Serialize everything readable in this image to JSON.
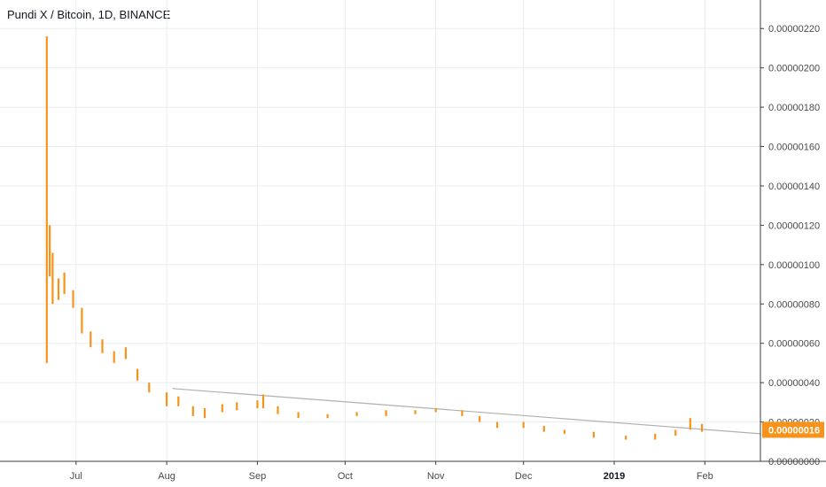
{
  "header": {
    "title": "Pundi X / Bitcoin, 1D, BINANCE"
  },
  "colors": {
    "candle": "#f7931a",
    "grid": "#e8edf2",
    "trendline": "#b0b0b0",
    "axis": "#3c3c3c",
    "price_tag": "#f7931a"
  },
  "current_price_label": "0.00000016",
  "chart_data": {
    "type": "bar",
    "title": "Pundi X / Bitcoin, 1D, BINANCE",
    "x_range": [
      "2018-06-05",
      "2019-02-20"
    ],
    "ylim": [
      0,
      2.3e-06
    ],
    "y_ticks": [
      {
        "value": 2.2e-06,
        "label": "0.00000220"
      },
      {
        "value": 2e-06,
        "label": "0.00000200"
      },
      {
        "value": 1.8e-06,
        "label": "0.00000180"
      },
      {
        "value": 1.6e-06,
        "label": "0.00000160"
      },
      {
        "value": 1.4e-06,
        "label": "0.00000140"
      },
      {
        "value": 1.2e-06,
        "label": "0.00000120"
      },
      {
        "value": 1e-06,
        "label": "0.00000100"
      },
      {
        "value": 8e-07,
        "label": "0.00000080"
      },
      {
        "value": 6e-07,
        "label": "0.00000060"
      },
      {
        "value": 4e-07,
        "label": "0.00000040"
      },
      {
        "value": 2e-07,
        "label": "0.00000020"
      },
      {
        "value": 0.0,
        "label": "0.00000000"
      }
    ],
    "x_ticks": [
      {
        "date": "2018-07-01",
        "label": "Jul",
        "bold": false
      },
      {
        "date": "2018-08-01",
        "label": "Aug",
        "bold": false
      },
      {
        "date": "2018-09-01",
        "label": "Sep",
        "bold": false
      },
      {
        "date": "2018-10-01",
        "label": "Oct",
        "bold": false
      },
      {
        "date": "2018-11-01",
        "label": "Nov",
        "bold": false
      },
      {
        "date": "2018-12-01",
        "label": "Dec",
        "bold": false
      },
      {
        "date": "2019-01-01",
        "label": "2019",
        "bold": true
      },
      {
        "date": "2019-02-01",
        "label": "Feb",
        "bold": false
      }
    ],
    "grid": true,
    "last_price": 1.6e-07,
    "trendline": [
      {
        "date": "2018-08-03",
        "value": 3.7e-07
      },
      {
        "date": "2019-02-20",
        "value": 1.4e-07
      }
    ],
    "series": [
      {
        "bars": [
          {
            "date": "2018-06-21",
            "high": 2.16e-06,
            "low": 5e-07
          },
          {
            "date": "2018-06-22",
            "high": 1.2e-06,
            "low": 9.4e-07
          },
          {
            "date": "2018-06-23",
            "high": 1.06e-06,
            "low": 8e-07
          },
          {
            "date": "2018-06-25",
            "high": 9.3e-07,
            "low": 8.2e-07
          },
          {
            "date": "2018-06-27",
            "high": 9.6e-07,
            "low": 8.5e-07
          },
          {
            "date": "2018-06-30",
            "high": 8.7e-07,
            "low": 7.8e-07
          },
          {
            "date": "2018-07-03",
            "high": 7.8e-07,
            "low": 6.5e-07
          },
          {
            "date": "2018-07-06",
            "high": 6.6e-07,
            "low": 5.8e-07
          },
          {
            "date": "2018-07-10",
            "high": 6.2e-07,
            "low": 5.5e-07
          },
          {
            "date": "2018-07-14",
            "high": 5.6e-07,
            "low": 5e-07
          },
          {
            "date": "2018-07-18",
            "high": 5.8e-07,
            "low": 5.2e-07
          },
          {
            "date": "2018-07-22",
            "high": 4.7e-07,
            "low": 4.1e-07
          },
          {
            "date": "2018-07-26",
            "high": 4e-07,
            "low": 3.5e-07
          },
          {
            "date": "2018-08-01",
            "high": 3.5e-07,
            "low": 2.8e-07
          },
          {
            "date": "2018-08-05",
            "high": 3.3e-07,
            "low": 2.8e-07
          },
          {
            "date": "2018-08-10",
            "high": 2.8e-07,
            "low": 2.3e-07
          },
          {
            "date": "2018-08-14",
            "high": 2.7e-07,
            "low": 2.2e-07
          },
          {
            "date": "2018-08-20",
            "high": 2.9e-07,
            "low": 2.5e-07
          },
          {
            "date": "2018-08-25",
            "high": 3e-07,
            "low": 2.6e-07
          },
          {
            "date": "2018-09-01",
            "high": 3.1e-07,
            "low": 2.7e-07
          },
          {
            "date": "2018-09-03",
            "high": 3.4e-07,
            "low": 2.7e-07
          },
          {
            "date": "2018-09-08",
            "high": 2.8e-07,
            "low": 2.4e-07
          },
          {
            "date": "2018-09-15",
            "high": 2.5e-07,
            "low": 2.2e-07
          },
          {
            "date": "2018-09-25",
            "high": 2.4e-07,
            "low": 2.2e-07
          },
          {
            "date": "2018-10-05",
            "high": 2.5e-07,
            "low": 2.3e-07
          },
          {
            "date": "2018-10-15",
            "high": 2.6e-07,
            "low": 2.3e-07
          },
          {
            "date": "2018-10-25",
            "high": 2.6e-07,
            "low": 2.4e-07
          },
          {
            "date": "2018-11-01",
            "high": 2.7e-07,
            "low": 2.5e-07
          },
          {
            "date": "2018-11-10",
            "high": 2.6e-07,
            "low": 2.3e-07
          },
          {
            "date": "2018-11-16",
            "high": 2.3e-07,
            "low": 2e-07
          },
          {
            "date": "2018-11-22",
            "high": 2e-07,
            "low": 1.7e-07
          },
          {
            "date": "2018-12-01",
            "high": 2e-07,
            "low": 1.7e-07
          },
          {
            "date": "2018-12-08",
            "high": 1.8e-07,
            "low": 1.5e-07
          },
          {
            "date": "2018-12-15",
            "high": 1.6e-07,
            "low": 1.4e-07
          },
          {
            "date": "2018-12-25",
            "high": 1.5e-07,
            "low": 1.2e-07
          },
          {
            "date": "2019-01-05",
            "high": 1.3e-07,
            "low": 1.1e-07
          },
          {
            "date": "2019-01-15",
            "high": 1.4e-07,
            "low": 1.1e-07
          },
          {
            "date": "2019-01-22",
            "high": 1.6e-07,
            "low": 1.3e-07
          },
          {
            "date": "2019-01-27",
            "high": 2.2e-07,
            "low": 1.6e-07
          },
          {
            "date": "2019-01-31",
            "high": 1.9e-07,
            "low": 1.5e-07
          }
        ]
      }
    ]
  }
}
